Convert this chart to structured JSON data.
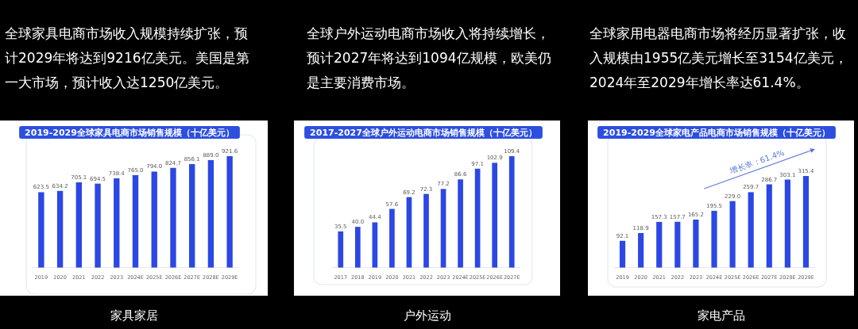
{
  "chart_data": [
    {
      "type": "bar",
      "title": "2019-2029全球家具电商市场销售规模（十亿美元）",
      "subtitle": "全球家具电商市场收入规模持续扩张，预计2029年将达到9216亿美元。美国是第一大市场，预计收入达1250亿美元。",
      "categories": [
        "2019",
        "2020",
        "2021",
        "2022",
        "2023",
        "2024E",
        "2025E",
        "2026E",
        "2027E",
        "2028E",
        "2029E"
      ],
      "values": [
        623.5,
        634.2,
        705.1,
        694.5,
        738.4,
        765.0,
        794.0,
        824.7,
        856.1,
        889.0,
        921.6
      ],
      "value_labels": [
        "623.5",
        "634.2",
        "705.1",
        "694.5",
        "738.4",
        "765.0",
        "794.0",
        "824.7",
        "856.1",
        "889.0",
        "921.6"
      ],
      "color": "#2b47e4",
      "annotations": [
        "家具家居"
      ]
    },
    {
      "type": "bar",
      "title": "2017-2027全球户外运动电商市场销售规模（十亿美元）",
      "subtitle": "全球户外运动电商市场收入将持续增长，预计2027年将达到1094亿规模，欧美仍是主要消费市场。",
      "categories": [
        "2017",
        "2018",
        "2019",
        "2020",
        "2021",
        "2022",
        "2023",
        "2024E",
        "2025E",
        "2026E",
        "2027E"
      ],
      "values": [
        35.5,
        40.0,
        44.4,
        57.6,
        69.2,
        72.3,
        77.2,
        86.6,
        97.1,
        102.9,
        109.4
      ],
      "value_labels": [
        "35.5",
        "40.0",
        "44.4",
        "57.6",
        "69.2",
        "72.3",
        "77.2",
        "86.6",
        "97.1",
        "102.9",
        "109.4"
      ],
      "color": "#2b47e4",
      "annotations": [
        "户外运动"
      ]
    },
    {
      "type": "bar",
      "title": "2019-2029全球家电产品电商市场销售规模（十亿美元）",
      "subtitle": "全球家用电器电商市场将经历显著扩张，收入规模由1955亿美元增长至3154亿美元，2024年至2029年增长率达61.4%。",
      "categories": [
        "2019",
        "2020",
        "2021",
        "2022",
        "2023",
        "2024E",
        "2025E",
        "2026E",
        "2027E",
        "2028E",
        "2029E"
      ],
      "values": [
        92.1,
        118.9,
        157.3,
        157.7,
        165.2,
        195.5,
        229.0,
        259.7,
        286.7,
        303.1,
        315.4
      ],
      "value_labels": [
        "92.1",
        "118.9",
        "157.3",
        "157.7",
        "165.2",
        "195.5",
        "229.0",
        "259.7",
        "286.7",
        "303.1",
        "315.4"
      ],
      "color": "#2b47e4",
      "annotations": [
        "家电产品",
        "增长率：61.4%"
      ]
    }
  ]
}
